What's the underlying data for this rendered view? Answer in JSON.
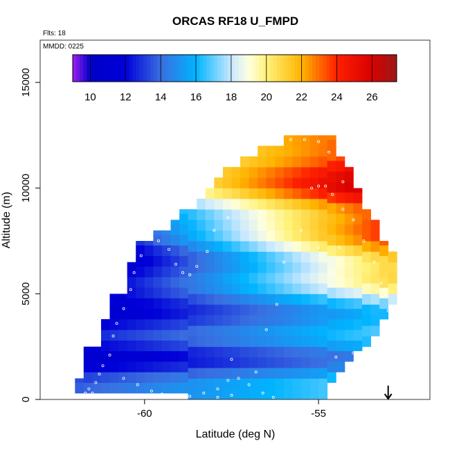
{
  "chart_data": {
    "type": "heatmap",
    "title": "ORCAS RF18 U_FMPD",
    "annotations": {
      "flights": "Flts: 18",
      "date": "MMDD: 0225"
    },
    "xlabel": "Latitude (deg N)",
    "ylabel": "Altitude (m)",
    "xlim": [
      -63,
      -51.8
    ],
    "ylim": [
      0,
      17000
    ],
    "xticks": [
      -60,
      -55
    ],
    "xtick_labels": [
      "-60",
      "-55"
    ],
    "yticks": [
      0,
      5000,
      10000,
      15000
    ],
    "ytick_labels": [
      "0",
      "5000",
      "10000",
      "15000"
    ],
    "colorbar": {
      "position": "top-inset",
      "range": [
        9,
        27.4
      ],
      "ticks": [
        10,
        12,
        14,
        16,
        18,
        20,
        22,
        24,
        26
      ],
      "tick_labels": [
        "10",
        "12",
        "14",
        "16",
        "18",
        "20",
        "22",
        "24",
        "26"
      ]
    },
    "color_stops": [
      {
        "v": 9,
        "c": "#a020f0"
      },
      {
        "v": 10,
        "c": "#0000c8"
      },
      {
        "v": 12,
        "c": "#0000d8"
      },
      {
        "v": 14,
        "c": "#3a6ee0"
      },
      {
        "v": 16,
        "c": "#00b4ff"
      },
      {
        "v": 18,
        "c": "#c8e8ff"
      },
      {
        "v": 19,
        "c": "#ffffe0"
      },
      {
        "v": 20,
        "c": "#fff27a"
      },
      {
        "v": 22,
        "c": "#ffb400"
      },
      {
        "v": 24,
        "c": "#ff2000"
      },
      {
        "v": 26,
        "c": "#d80000"
      },
      {
        "v": 27.4,
        "c": "#9a1a1a"
      }
    ],
    "grid": {
      "lat_start": -62.0,
      "lat_step": 0.25,
      "alt_step": 500,
      "coverage": [
        {
          "lat": -62.0,
          "alt_min": 300,
          "alt_max": 1000
        },
        {
          "lat": -61.75,
          "alt_min": 300,
          "alt_max": 2500
        },
        {
          "lat": -61.5,
          "alt_min": 300,
          "alt_max": 2500
        },
        {
          "lat": -61.25,
          "alt_min": 300,
          "alt_max": 3800
        },
        {
          "lat": -61.0,
          "alt_min": 300,
          "alt_max": 5000
        },
        {
          "lat": -60.75,
          "alt_min": 300,
          "alt_max": 5000
        },
        {
          "lat": -60.5,
          "alt_min": 300,
          "alt_max": 6500
        },
        {
          "lat": -60.25,
          "alt_min": 300,
          "alt_max": 7500
        },
        {
          "lat": -60.0,
          "alt_min": 300,
          "alt_max": 7500
        },
        {
          "lat": -59.75,
          "alt_min": 300,
          "alt_max": 8000
        },
        {
          "lat": -59.5,
          "alt_min": 300,
          "alt_max": 8000
        },
        {
          "lat": -59.25,
          "alt_min": 300,
          "alt_max": 8500
        },
        {
          "lat": -59.0,
          "alt_min": 300,
          "alt_max": 9000
        },
        {
          "lat": -58.75,
          "alt_min": 0,
          "alt_max": 9000
        },
        {
          "lat": -58.5,
          "alt_min": 0,
          "alt_max": 9500
        },
        {
          "lat": -58.25,
          "alt_min": 0,
          "alt_max": 10000
        },
        {
          "lat": -58.0,
          "alt_min": 0,
          "alt_max": 10500
        },
        {
          "lat": -57.75,
          "alt_min": 0,
          "alt_max": 11000
        },
        {
          "lat": -57.5,
          "alt_min": 0,
          "alt_max": 11000
        },
        {
          "lat": -57.25,
          "alt_min": 0,
          "alt_max": 11500
        },
        {
          "lat": -57.0,
          "alt_min": 0,
          "alt_max": 11500
        },
        {
          "lat": -56.75,
          "alt_min": 0,
          "alt_max": 12000
        },
        {
          "lat": -56.5,
          "alt_min": 0,
          "alt_max": 12000
        },
        {
          "lat": -56.25,
          "alt_min": 0,
          "alt_max": 12000
        },
        {
          "lat": -56.0,
          "alt_min": 0,
          "alt_max": 12500
        },
        {
          "lat": -55.75,
          "alt_min": 0,
          "alt_max": 12500
        },
        {
          "lat": -55.5,
          "alt_min": 0,
          "alt_max": 12500
        },
        {
          "lat": -55.25,
          "alt_min": 0,
          "alt_max": 12500
        },
        {
          "lat": -55.0,
          "alt_min": 0,
          "alt_max": 12500
        },
        {
          "lat": -54.75,
          "alt_min": 800,
          "alt_max": 12500
        },
        {
          "lat": -54.5,
          "alt_min": 1300,
          "alt_max": 11500
        },
        {
          "lat": -54.25,
          "alt_min": 1800,
          "alt_max": 11000
        },
        {
          "lat": -54.0,
          "alt_min": 2300,
          "alt_max": 10000
        },
        {
          "lat": -53.75,
          "alt_min": 2500,
          "alt_max": 9000
        },
        {
          "lat": -53.5,
          "alt_min": 3000,
          "alt_max": 8500
        },
        {
          "lat": -53.25,
          "alt_min": 3800,
          "alt_max": 7500
        },
        {
          "lat": -53.0,
          "alt_min": 4500,
          "alt_max": 7000
        }
      ]
    },
    "wind_profile": {
      "alt_m": [
        0,
        1000,
        2000,
        3000,
        4000,
        5000,
        6000,
        7000,
        8000,
        9000,
        10000,
        11000,
        12000,
        12500
      ],
      "south_lat": -62.0,
      "north_lat": -53.0,
      "u_south": [
        13.5,
        13.0,
        11.0,
        12.0,
        11.0,
        10.5,
        10.0,
        9.5,
        10.5,
        13.0,
        15.0,
        17.0,
        18.0,
        18.0
      ],
      "u_north": [
        17.0,
        16.5,
        15.5,
        16.0,
        17.0,
        18.5,
        21.0,
        22.5,
        23.5,
        25.0,
        26.5,
        26.5,
        24.0,
        22.5
      ]
    },
    "observations": [
      {
        "lat": -61.7,
        "alt": 300
      },
      {
        "lat": -61.5,
        "alt": 300
      },
      {
        "lat": -61.6,
        "alt": 500
      },
      {
        "lat": -61.4,
        "alt": 800
      },
      {
        "lat": -61.3,
        "alt": 1200
      },
      {
        "lat": -61.2,
        "alt": 1600
      },
      {
        "lat": -61.0,
        "alt": 2100
      },
      {
        "lat": -60.9,
        "alt": 3000
      },
      {
        "lat": -60.8,
        "alt": 3600
      },
      {
        "lat": -60.6,
        "alt": 4300
      },
      {
        "lat": -60.4,
        "alt": 5200
      },
      {
        "lat": -60.3,
        "alt": 6000
      },
      {
        "lat": -60.1,
        "alt": 6800
      },
      {
        "lat": -59.8,
        "alt": 7600
      },
      {
        "lat": -59.6,
        "alt": 7500
      },
      {
        "lat": -59.3,
        "alt": 7100
      },
      {
        "lat": -59.1,
        "alt": 6400
      },
      {
        "lat": -58.9,
        "alt": 6000
      },
      {
        "lat": -58.7,
        "alt": 5900
      },
      {
        "lat": -58.5,
        "alt": 6300
      },
      {
        "lat": -58.2,
        "alt": 7000
      },
      {
        "lat": -58.0,
        "alt": 8000
      },
      {
        "lat": -57.6,
        "alt": 8600
      },
      {
        "lat": -60.6,
        "alt": 1000
      },
      {
        "lat": -60.2,
        "alt": 700
      },
      {
        "lat": -59.8,
        "alt": 400
      },
      {
        "lat": -59.5,
        "alt": 250
      },
      {
        "lat": -59.1,
        "alt": 100
      },
      {
        "lat": -58.7,
        "alt": 150
      },
      {
        "lat": -58.3,
        "alt": 300
      },
      {
        "lat": -57.9,
        "alt": 500
      },
      {
        "lat": -57.6,
        "alt": 900
      },
      {
        "lat": -57.3,
        "alt": 1000
      },
      {
        "lat": -57.0,
        "alt": 700
      },
      {
        "lat": -56.6,
        "alt": 300
      },
      {
        "lat": -56.3,
        "alt": 100
      },
      {
        "lat": -57.9,
        "alt": 100
      },
      {
        "lat": -57.5,
        "alt": 200
      },
      {
        "lat": -56.5,
        "alt": 3300
      },
      {
        "lat": -56.2,
        "alt": 4500
      },
      {
        "lat": -56.0,
        "alt": 6500
      },
      {
        "lat": -55.8,
        "alt": 7300
      },
      {
        "lat": -55.5,
        "alt": 8000
      },
      {
        "lat": -55.2,
        "alt": 10000
      },
      {
        "lat": -55.0,
        "alt": 10100
      },
      {
        "lat": -54.8,
        "alt": 10100
      },
      {
        "lat": -54.6,
        "alt": 9700
      },
      {
        "lat": -54.3,
        "alt": 9000
      },
      {
        "lat": -54.0,
        "alt": 8500
      },
      {
        "lat": -53.7,
        "alt": 7500
      },
      {
        "lat": -53.4,
        "alt": 6500
      },
      {
        "lat": -53.2,
        "alt": 5500
      },
      {
        "lat": -53.0,
        "alt": 4200
      },
      {
        "lat": -53.1,
        "alt": 3300
      },
      {
        "lat": -53.3,
        "alt": 2600
      },
      {
        "lat": -54.0,
        "alt": 2200
      },
      {
        "lat": -54.5,
        "alt": 2000
      },
      {
        "lat": -55.8,
        "alt": 12300
      },
      {
        "lat": -55.4,
        "alt": 12300
      },
      {
        "lat": -55.0,
        "alt": 12200
      },
      {
        "lat": -54.7,
        "alt": 11700
      },
      {
        "lat": -54.3,
        "alt": 10300
      },
      {
        "lat": -55.0,
        "alt": 7200
      },
      {
        "lat": -54.4,
        "alt": 7200
      },
      {
        "lat": -57.5,
        "alt": 1900
      },
      {
        "lat": -56.8,
        "alt": 1300
      }
    ],
    "marker": {
      "symbol": "down-arrow",
      "lat": -53.0,
      "alt": 0
    },
    "colors": {
      "frame": "#333333",
      "text": "#000000",
      "obs_marker": "#ffffff"
    }
  }
}
